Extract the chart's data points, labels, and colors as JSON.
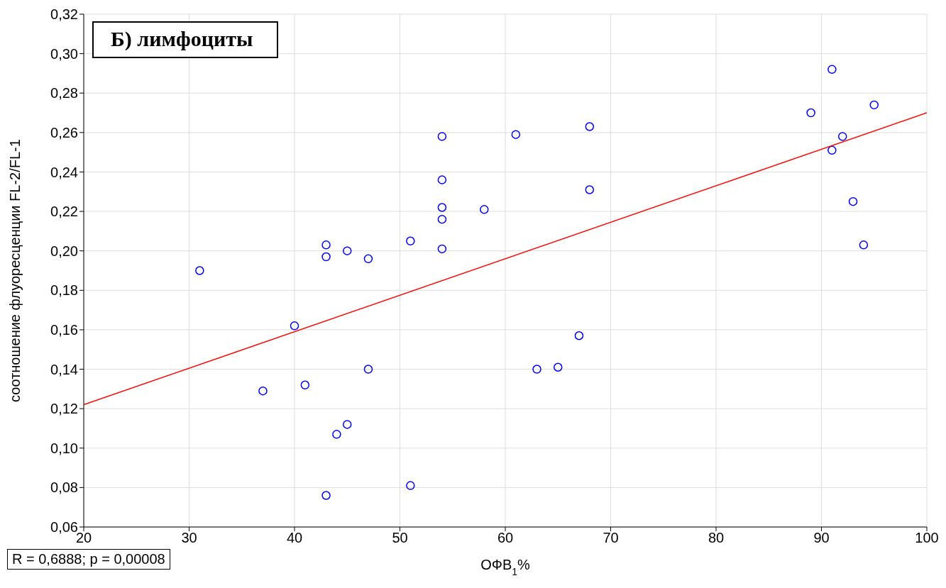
{
  "chart_data": {
    "type": "scatter",
    "xlabel": "ОФВ$_{1}$%",
    "ylabel": "соотношение флуоресценции FL-2/FL-1",
    "annotations": [
      "Б) лимфоциты",
      "R = 0,6888; p = 0,00008"
    ],
    "xlim": [
      20,
      100
    ],
    "xticks": [
      20,
      30,
      40,
      50,
      60,
      70,
      80,
      90,
      100
    ],
    "ylim": [
      0.06,
      0.32
    ],
    "yticks": [
      {
        "value": 0.06,
        "label": "0,06"
      },
      {
        "value": 0.08,
        "label": "0,08"
      },
      {
        "value": 0.1,
        "label": "0,10"
      },
      {
        "value": 0.12,
        "label": "0,12"
      },
      {
        "value": 0.14,
        "label": "0,14"
      },
      {
        "value": 0.16,
        "label": "0,16"
      },
      {
        "value": 0.18,
        "label": "0,18"
      },
      {
        "value": 0.2,
        "label": "0,20"
      },
      {
        "value": 0.22,
        "label": "0,22"
      },
      {
        "value": 0.24,
        "label": "0,24"
      },
      {
        "value": 0.26,
        "label": "0,26"
      },
      {
        "value": 0.28,
        "label": "0,28"
      },
      {
        "value": 0.3,
        "label": "0,30"
      },
      {
        "value": 0.32,
        "label": "0,32"
      }
    ],
    "grid": true,
    "marker": "circle",
    "legend": false,
    "series": [
      {
        "color": "#0000ff",
        "x": [
          31,
          37,
          40,
          41,
          43,
          43,
          43,
          44,
          45,
          45,
          47,
          47,
          51,
          51,
          54,
          54,
          54,
          54,
          54,
          58,
          61,
          63,
          65,
          67,
          68,
          68,
          89,
          91,
          91,
          92,
          93,
          94,
          95
        ],
        "values": [
          0.19,
          0.129,
          0.162,
          0.132,
          0.203,
          0.197,
          0.076,
          0.107,
          0.2,
          0.112,
          0.196,
          0.14,
          0.205,
          0.081,
          0.258,
          0.236,
          0.222,
          0.216,
          0.201,
          0.221,
          0.259,
          0.14,
          0.141,
          0.157,
          0.263,
          0.231,
          0.27,
          0.292,
          0.251,
          0.258,
          0.225,
          0.203,
          0.274
        ]
      },
      {
        "type": "line",
        "marker": "none",
        "color": "#ff0000",
        "x": [
          20,
          100
        ],
        "values": [
          0.122,
          0.27
        ]
      }
    ]
  }
}
